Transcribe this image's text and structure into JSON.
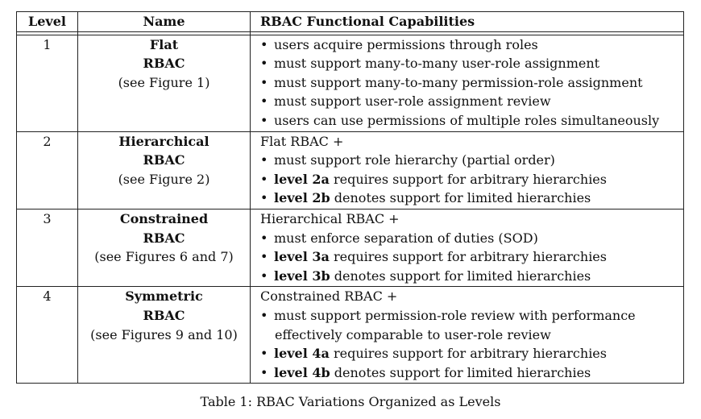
{
  "table": {
    "headers": {
      "level": "Level",
      "name": "Name",
      "capabilities": "RBAC Functional Capabilities"
    },
    "rows": [
      {
        "level": "1",
        "name_line1": "Flat",
        "name_line2": "RBAC",
        "note": "(see Figure 1)",
        "lines": [
          {
            "bullet": true,
            "bold": "",
            "text": "users acquire permissions through roles"
          },
          {
            "bullet": true,
            "bold": "",
            "text": "must support many-to-many user-role assignment"
          },
          {
            "bullet": true,
            "bold": "",
            "text": "must support many-to-many permission-role assignment"
          },
          {
            "bullet": true,
            "bold": "",
            "text": "must support user-role assignment review"
          },
          {
            "bullet": true,
            "bold": "",
            "text": "users can use permissions of multiple roles simultaneously"
          }
        ]
      },
      {
        "level": "2",
        "name_line1": "Hierarchical",
        "name_line2": "RBAC",
        "note": "(see Figure 2)",
        "lines": [
          {
            "bullet": false,
            "bold": "",
            "text": "Flat RBAC +"
          },
          {
            "bullet": true,
            "bold": "",
            "text": "must support role hierarchy (partial order)"
          },
          {
            "bullet": true,
            "bold": "level 2a",
            "text": " requires support for arbitrary hierarchies"
          },
          {
            "bullet": true,
            "bold": "level 2b",
            "text": " denotes support for limited hierarchies"
          }
        ]
      },
      {
        "level": "3",
        "name_line1": "Constrained",
        "name_line2": "RBAC",
        "note": "(see Figures 6 and 7)",
        "lines": [
          {
            "bullet": false,
            "bold": "",
            "text": "Hierarchical RBAC +"
          },
          {
            "bullet": true,
            "bold": "",
            "text": "must enforce separation of duties (SOD)"
          },
          {
            "bullet": true,
            "bold": "level 3a",
            "text": " requires support for arbitrary hierarchies"
          },
          {
            "bullet": true,
            "bold": "level 3b",
            "text": " denotes support for limited hierarchies"
          }
        ]
      },
      {
        "level": "4",
        "name_line1": "Symmetric",
        "name_line2": "RBAC",
        "note": "(see Figures 9 and 10)",
        "lines": [
          {
            "bullet": false,
            "bold": "",
            "text": "Constrained RBAC +"
          },
          {
            "bullet": true,
            "bold": "",
            "text": "must support permission-role review with performance"
          },
          {
            "bullet": false,
            "indent": true,
            "bold": "",
            "text": "effectively comparable to user-role review"
          },
          {
            "bullet": true,
            "bold": "level 4a",
            "text": " requires support for arbitrary hierarchies"
          },
          {
            "bullet": true,
            "bold": "level 4b",
            "text": " denotes support for limited hierarchies"
          }
        ]
      }
    ]
  },
  "caption": "Table 1: RBAC Variations Organized as Levels"
}
